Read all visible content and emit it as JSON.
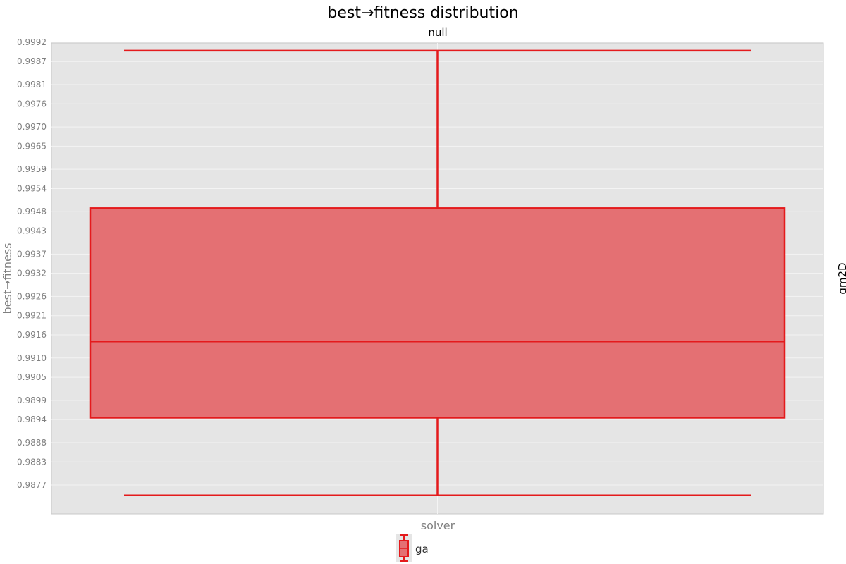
{
  "chart_data": {
    "type": "box",
    "title": "best→fitness distribution",
    "facet_top": "null",
    "facet_right": "gm2D",
    "xlabel": "solver",
    "ylabel": "best→fitness",
    "ylim": [
      0.98695,
      0.99918
    ],
    "yticks": [
      "0.9877",
      "0.9883",
      "0.9888",
      "0.9894",
      "0.9899",
      "0.9905",
      "0.9910",
      "0.9916",
      "0.9921",
      "0.9926",
      "0.9932",
      "0.9937",
      "0.9943",
      "0.9948",
      "0.9954",
      "0.9959",
      "0.9965",
      "0.9970",
      "0.9976",
      "0.9981",
      "0.9987",
      "0.9992"
    ],
    "grid": true,
    "legend_position": "bottom",
    "series": [
      {
        "name": "ga",
        "color": "#e41a1c",
        "fill": "#e47073",
        "whisker_low": 0.98743,
        "q1": 0.98945,
        "median": 0.99143,
        "q3": 0.99489,
        "whisker_high": 0.99898
      }
    ]
  }
}
